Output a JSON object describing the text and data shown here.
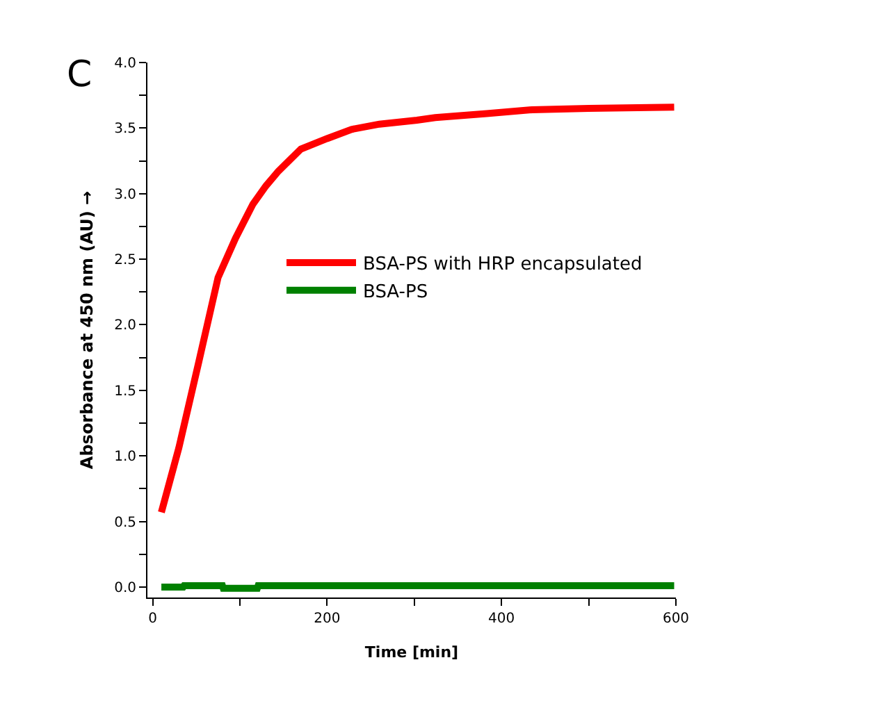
{
  "chart_data": {
    "type": "line",
    "xlabel": "Time [min]",
    "ylabel": "Absorbance at 450 nm (AU) →",
    "annotations": [
      "C"
    ],
    "series": [
      {
        "name": "BSA-PS with HRP encapsulated",
        "color": "#ff0000",
        "x": [
          10,
          30,
          53,
          75,
          95,
          115,
          130,
          144,
          170,
          200,
          228,
          260,
          303,
          324,
          383,
          435,
          500,
          598
        ],
        "values": [
          0.57,
          1.06,
          1.72,
          2.36,
          2.66,
          2.92,
          3.06,
          3.17,
          3.34,
          3.42,
          3.49,
          3.53,
          3.56,
          3.58,
          3.61,
          3.64,
          3.65,
          3.66
        ]
      },
      {
        "name": "BSA-PS",
        "color": "#008000",
        "x": [
          10,
          35,
          36,
          80,
          81,
          120,
          121,
          598
        ],
        "values": [
          0.0,
          0.0,
          0.01,
          0.01,
          -0.01,
          -0.01,
          0.01,
          0.01
        ]
      }
    ],
    "xlim": [
      -6,
      600
    ],
    "xticks": [
      0,
      {
        "value": 100,
        "label": null
      },
      200,
      {
        "value": 300,
        "label": null
      },
      400,
      {
        "value": 500,
        "label": null
      },
      600
    ],
    "ylim": [
      -0.08,
      4.0
    ],
    "yticks": [
      "0.0",
      {
        "value": 0.25,
        "label": null
      },
      {
        "value": 0.5,
        "label": "0.5"
      },
      {
        "value": 0.75,
        "label": null
      },
      {
        "value": 1.0,
        "label": "1.0"
      },
      {
        "value": 1.25,
        "label": null
      },
      {
        "value": 1.5,
        "label": "1.5"
      },
      {
        "value": 1.75,
        "label": null
      },
      {
        "value": 2.0,
        "label": "2.0"
      },
      {
        "value": 2.25,
        "label": null
      },
      {
        "value": 2.5,
        "label": "2.5"
      },
      {
        "value": 2.75,
        "label": null
      },
      {
        "value": 3.0,
        "label": "3.0"
      },
      {
        "value": 3.25,
        "label": null
      },
      {
        "value": 3.5,
        "label": "3.5"
      },
      {
        "value": 3.75,
        "label": null
      },
      {
        "value": 4.0,
        "label": "4.0"
      }
    ],
    "grid": false,
    "legend": "center",
    "marker": "none",
    "line_style": "solid"
  }
}
